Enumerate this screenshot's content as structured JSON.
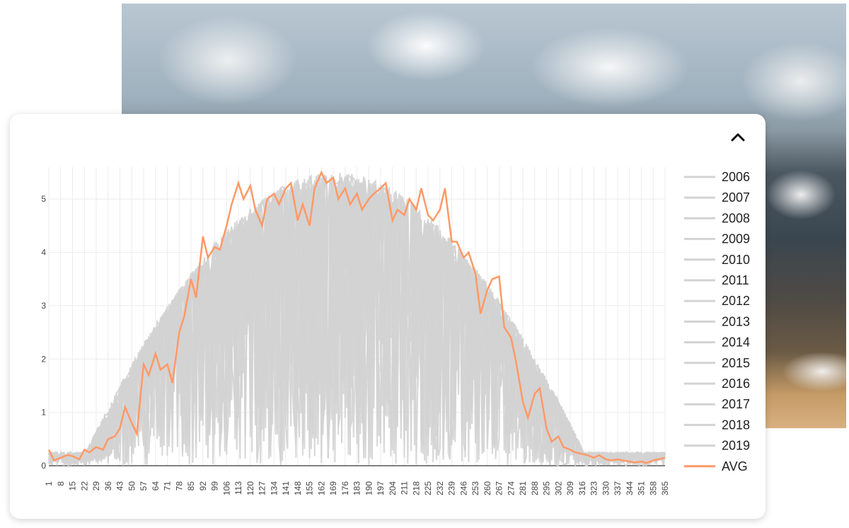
{
  "chart_data": {
    "type": "line",
    "title": "",
    "xlabel": "",
    "ylabel": "",
    "ylim": [
      0,
      5.6
    ],
    "xlim": [
      1,
      365
    ],
    "y_ticks": [
      "0",
      "1",
      "2",
      "3",
      "4",
      "5"
    ],
    "x_ticks": [
      "1",
      "8",
      "15",
      "22",
      "29",
      "36",
      "43",
      "50",
      "57",
      "64",
      "71",
      "78",
      "85",
      "92",
      "99",
      "106",
      "113",
      "120",
      "127",
      "134",
      "141",
      "148",
      "155",
      "162",
      "169",
      "176",
      "183",
      "190",
      "197",
      "204",
      "211",
      "218",
      "225",
      "232",
      "239",
      "246",
      "253",
      "260",
      "267",
      "274",
      "281",
      "288",
      "295",
      "302",
      "309",
      "316",
      "323",
      "330",
      "337",
      "344",
      "351",
      "358",
      "365"
    ],
    "grid": true,
    "legend_position": "right",
    "series": [
      {
        "name": "2006",
        "color": "#d3d3d3"
      },
      {
        "name": "2007",
        "color": "#d3d3d3"
      },
      {
        "name": "2008",
        "color": "#d3d3d3"
      },
      {
        "name": "2009",
        "color": "#d3d3d3"
      },
      {
        "name": "2010",
        "color": "#d3d3d3"
      },
      {
        "name": "2011",
        "color": "#d3d3d3"
      },
      {
        "name": "2012",
        "color": "#d3d3d3"
      },
      {
        "name": "2013",
        "color": "#d3d3d3"
      },
      {
        "name": "2014",
        "color": "#d3d3d3"
      },
      {
        "name": "2015",
        "color": "#d3d3d3"
      },
      {
        "name": "2016",
        "color": "#d3d3d3"
      },
      {
        "name": "2017",
        "color": "#d3d3d3"
      },
      {
        "name": "2018",
        "color": "#d3d3d3"
      },
      {
        "name": "2019",
        "color": "#d3d3d3"
      },
      {
        "name": "AVG",
        "color": "#ff9966",
        "x": [
          1,
          4,
          8,
          12,
          15,
          19,
          22,
          25,
          29,
          33,
          36,
          40,
          43,
          46,
          50,
          53,
          57,
          60,
          64,
          67,
          71,
          74,
          78,
          81,
          85,
          88,
          92,
          95,
          99,
          102,
          106,
          109,
          113,
          116,
          120,
          123,
          127,
          130,
          134,
          137,
          141,
          144,
          148,
          151,
          155,
          158,
          162,
          165,
          169,
          172,
          176,
          179,
          183,
          186,
          190,
          193,
          197,
          200,
          204,
          207,
          211,
          214,
          218,
          221,
          225,
          228,
          232,
          235,
          239,
          242,
          246,
          249,
          253,
          256,
          260,
          263,
          267,
          270,
          274,
          277,
          281,
          284,
          288,
          291,
          295,
          298,
          302,
          305,
          309,
          312,
          316,
          319,
          323,
          326,
          330,
          333,
          337,
          340,
          344,
          347,
          351,
          354,
          358,
          361,
          365
        ],
        "values": [
          0.3,
          0.1,
          0.15,
          0.2,
          0.18,
          0.12,
          0.3,
          0.25,
          0.35,
          0.3,
          0.5,
          0.55,
          0.7,
          1.1,
          0.8,
          0.6,
          1.9,
          1.7,
          2.1,
          1.8,
          1.9,
          1.55,
          2.5,
          2.8,
          3.5,
          3.15,
          4.3,
          3.9,
          4.1,
          4.05,
          4.5,
          4.9,
          5.3,
          5.0,
          5.25,
          4.8,
          4.5,
          5.0,
          5.1,
          4.9,
          5.2,
          5.3,
          4.6,
          4.9,
          4.5,
          5.2,
          5.5,
          5.3,
          5.4,
          5.0,
          5.2,
          4.9,
          5.1,
          4.8,
          5.0,
          5.1,
          5.2,
          5.3,
          4.6,
          4.8,
          4.7,
          5.0,
          4.8,
          5.2,
          4.7,
          4.6,
          4.8,
          5.2,
          4.2,
          4.2,
          3.9,
          4.0,
          3.6,
          2.85,
          3.3,
          3.5,
          3.55,
          2.6,
          2.4,
          1.95,
          1.2,
          0.9,
          1.35,
          1.45,
          0.7,
          0.45,
          0.55,
          0.35,
          0.3,
          0.25,
          0.22,
          0.2,
          0.15,
          0.2,
          0.12,
          0.1,
          0.12,
          0.1,
          0.08,
          0.06,
          0.08,
          0.05,
          0.1,
          0.12,
          0.15
        ]
      }
    ]
  },
  "ui": {
    "collapse_icon": "chevron-up-icon",
    "background_image": "aerial-clouds-photo"
  }
}
